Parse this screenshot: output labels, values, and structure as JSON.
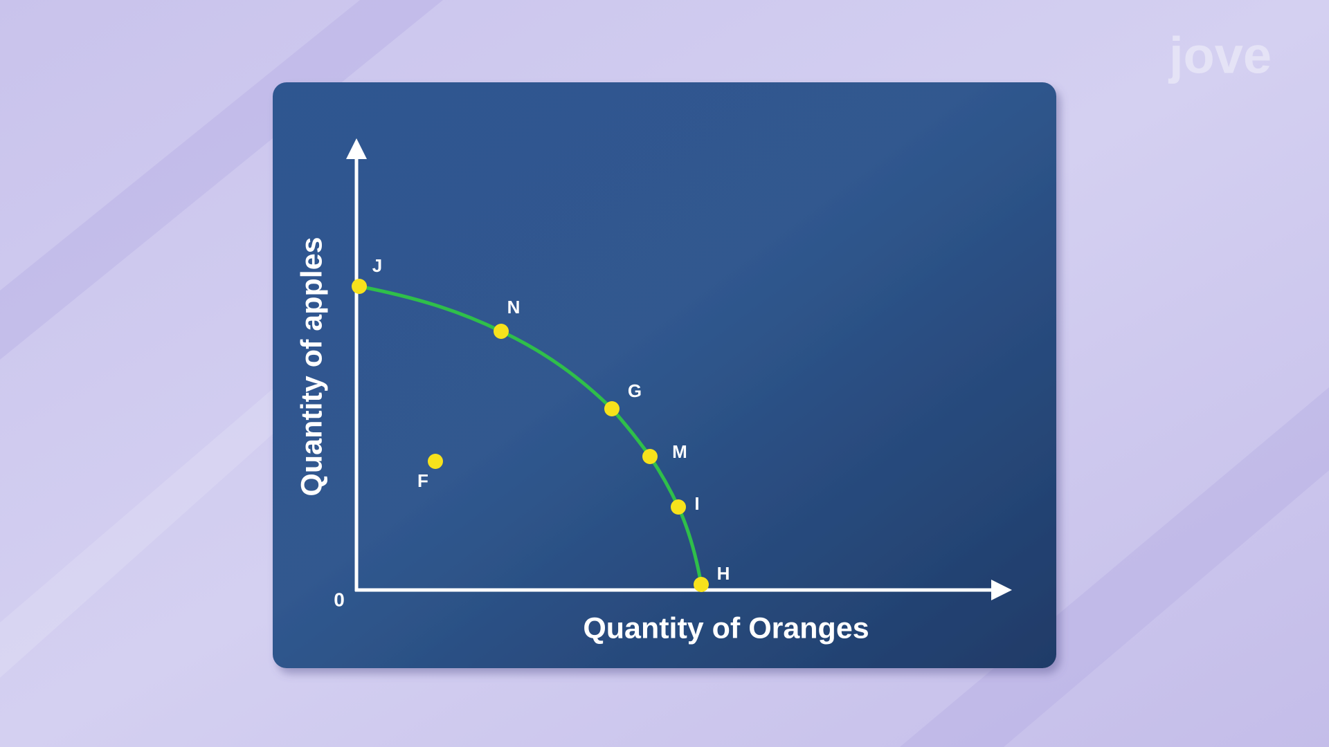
{
  "logo": "jove",
  "axes": {
    "y_label": "Quantity of apples",
    "x_label": "Quantity of Oranges",
    "origin": "0"
  },
  "nodes": [
    {
      "label": "J"
    },
    {
      "label": "N"
    },
    {
      "label": "G"
    },
    {
      "label": "M"
    },
    {
      "label": "I"
    },
    {
      "label": "H"
    },
    {
      "label": "F"
    }
  ]
}
